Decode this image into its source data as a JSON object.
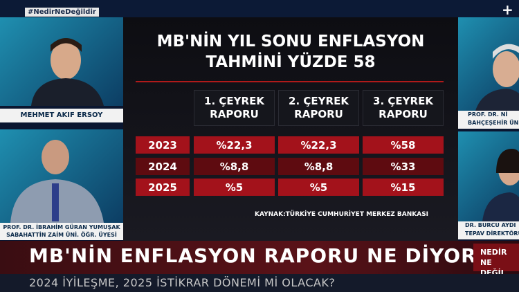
{
  "hashtag": "#NedirNeDeğildir",
  "graphic": {
    "title_lines": [
      "MB'NİN YIL SONU ENFLASYON",
      "TAHMİNİ YÜZDE 58"
    ],
    "table": {
      "headers": [
        "1. ÇEYREK RAPORU",
        "2. ÇEYREK RAPORU",
        "3. ÇEYREK RAPORU"
      ],
      "rows": [
        [
          "2023",
          "%22,3",
          "%22,3",
          "%58"
        ],
        [
          "2024",
          "%8,8",
          "%8,8",
          "%33"
        ],
        [
          "2025",
          "%5",
          "%5",
          "%15"
        ]
      ]
    },
    "source": "KAYNAK:TÜRKİYE CUMHURİYET MERKEZ BANKASI"
  },
  "guests": [
    {
      "name": "MEHMET AKIF ERSOY"
    },
    {
      "name": "PROF. DR. İBRAHİM GÜRAN YUMUŞAK",
      "title": "SABAHATTİN ZAİM ÜNİ. ÖĞR. ÜYESİ"
    },
    {
      "name": "PROF. DR. Nİ",
      "title": "BAHÇEŞEHİR ÜN"
    },
    {
      "name": "DR. BURCU AYDI",
      "title": "TEPAV DİREKTÖRÜ/ ESK"
    }
  ],
  "lower_third": {
    "headline": "MB'NİN ENFLASYON RAPORU NE DİYOR?",
    "subheadline": "2024 İYİLEŞME, 2025 İSTİKRAR DÖNEMİ Mİ OLACAK?",
    "program_lines": [
      "NEDİR",
      "NE DEĞİL"
    ]
  }
}
